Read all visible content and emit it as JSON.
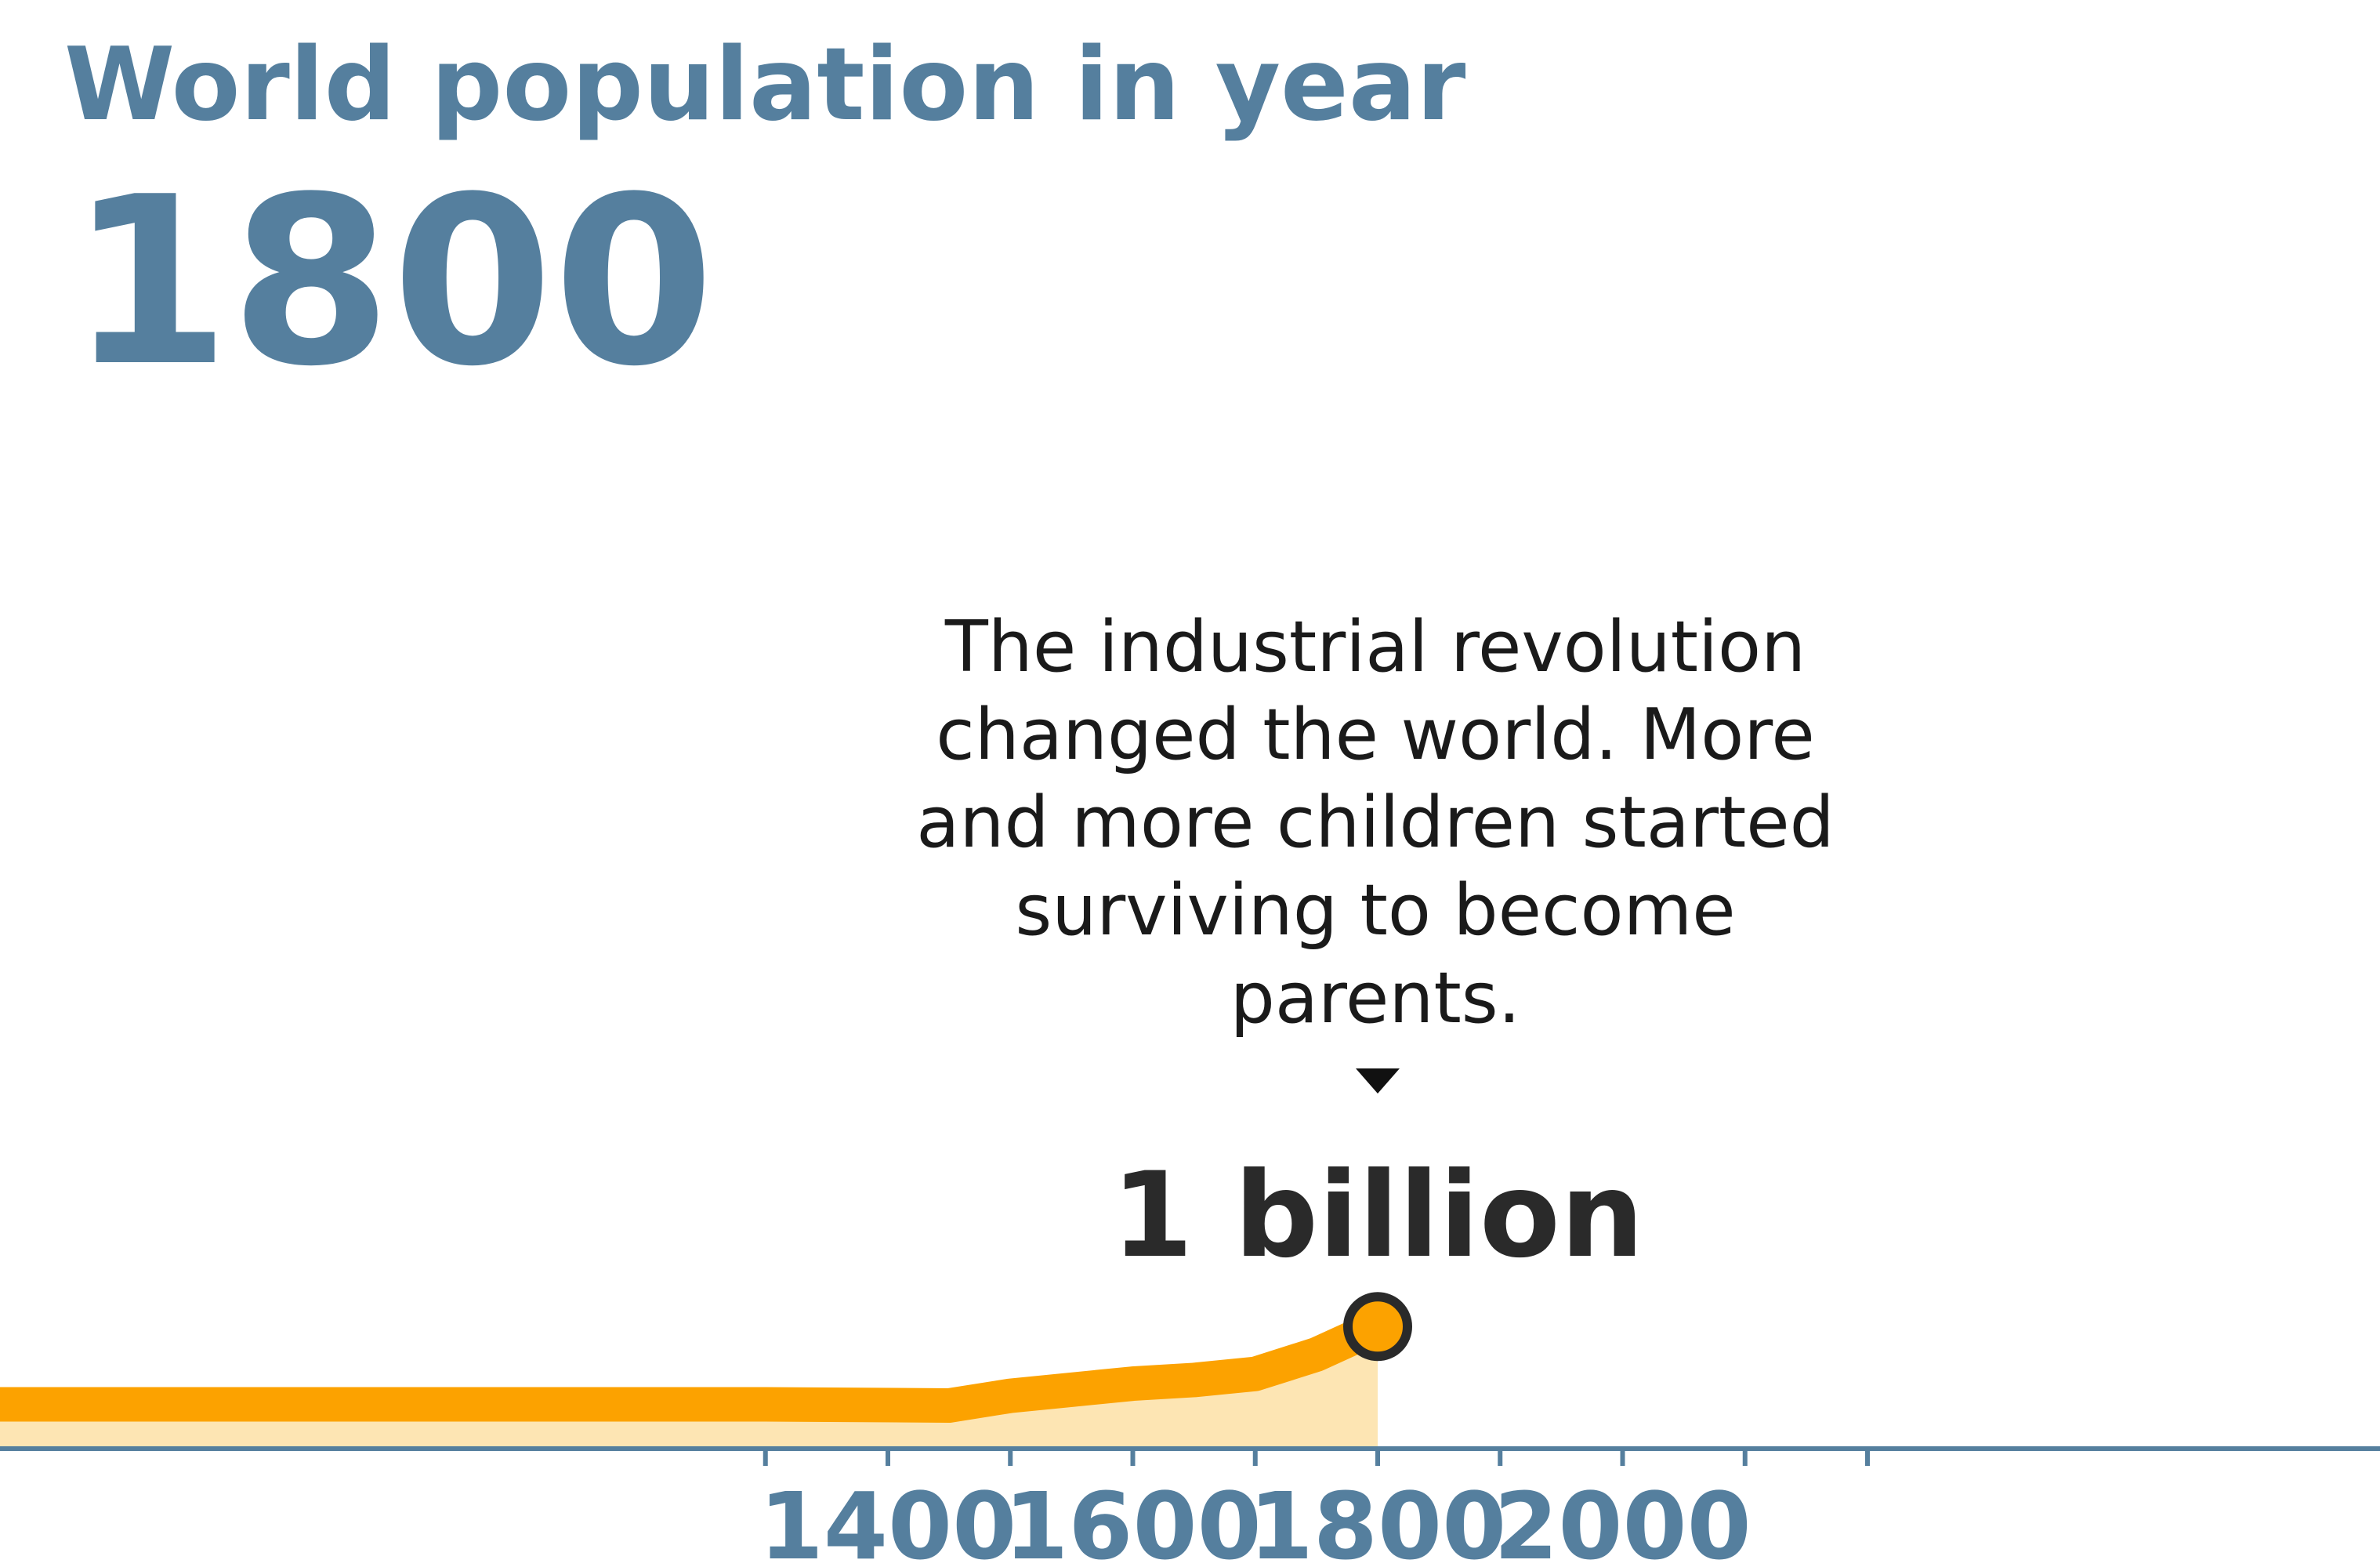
{
  "header": {
    "title": "World population in year",
    "year": "1800"
  },
  "annotation": {
    "lines": [
      "The industrial revolution",
      "changed the world. More",
      "and more children started",
      "surviving to become",
      "parents."
    ]
  },
  "marker": {
    "label": "1 billion"
  },
  "colors": {
    "title": "#557f9e",
    "axis": "#557f9e",
    "line": "#fca200",
    "area": "#fde5b3",
    "text": "#1a1a1a",
    "marker_stroke": "#2a2a2a"
  },
  "chart_data": {
    "type": "area",
    "x": [
      1200,
      1300,
      1450,
      1500,
      1550,
      1600,
      1650,
      1700,
      1750,
      1800
    ],
    "series": [
      {
        "values": [
          0.36,
          0.36,
          0.35,
          0.43,
          0.48,
          0.53,
          0.56,
          0.61,
          0.77,
          1.0
        ]
      }
    ],
    "xticks_labeled": [
      1400,
      1600,
      1800,
      2000
    ],
    "xticks_minor": [
      1300,
      1500,
      1700,
      1900,
      2100,
      2200
    ],
    "xlim": [
      1165,
      2140
    ],
    "ylim": [
      0,
      8
    ],
    "highlight": {
      "x": 1800,
      "y": 1.0,
      "label": "1 billion"
    },
    "grid": false,
    "legend": "none"
  }
}
